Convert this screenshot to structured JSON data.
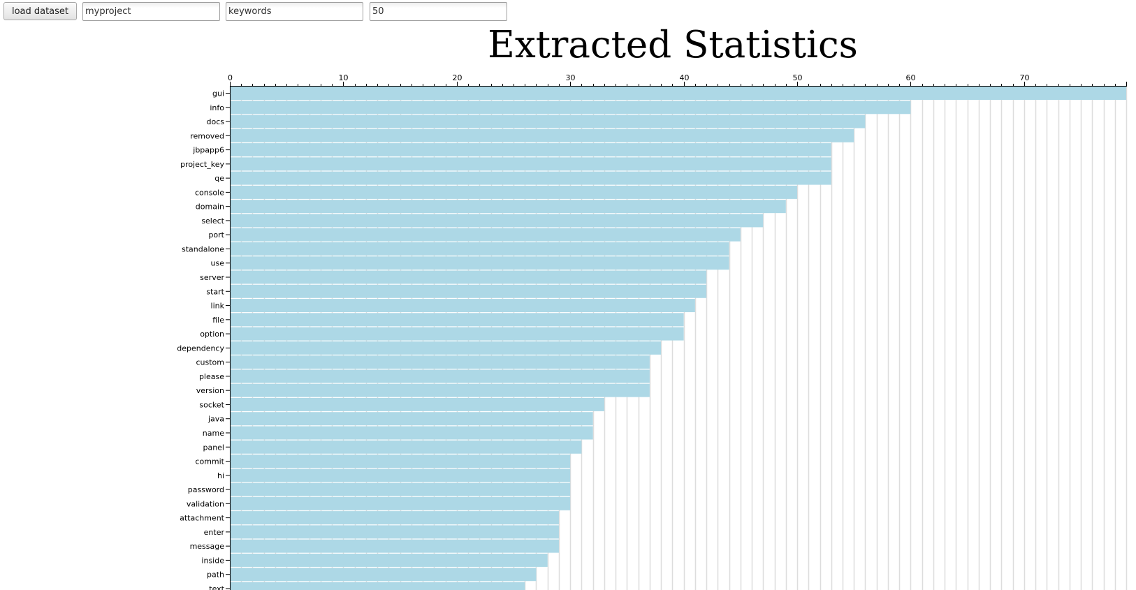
{
  "toolbar": {
    "load_label": "load dataset",
    "project_value": "myproject",
    "type_value": "keywords",
    "count_value": "50"
  },
  "chart_data": {
    "type": "bar",
    "orientation": "horizontal",
    "title": "Extracted Statistics",
    "xlim": [
      0,
      79
    ],
    "xticks": [
      0,
      10,
      20,
      30,
      40,
      50,
      60,
      70
    ],
    "grid": "vertical",
    "bar_color": "#add8e6",
    "grid_color": "#dddddd",
    "categories": [
      "gui",
      "info",
      "docs",
      "removed",
      "jbpapp6",
      "project_key",
      "qe",
      "console",
      "domain",
      "select",
      "port",
      "standalone",
      "use",
      "server",
      "start",
      "link",
      "file",
      "option",
      "dependency",
      "custom",
      "please",
      "version",
      "socket",
      "java",
      "name",
      "panel",
      "commit",
      "hi",
      "password",
      "validation",
      "attachment",
      "enter",
      "message",
      "inside",
      "path",
      "text"
    ],
    "values": [
      79,
      60,
      56,
      55,
      53,
      53,
      53,
      50,
      49,
      47,
      45,
      44,
      44,
      42,
      42,
      41,
      40,
      40,
      38,
      37,
      37,
      37,
      33,
      32,
      32,
      31,
      30,
      30,
      30,
      30,
      29,
      29,
      29,
      28,
      27,
      26
    ]
  }
}
